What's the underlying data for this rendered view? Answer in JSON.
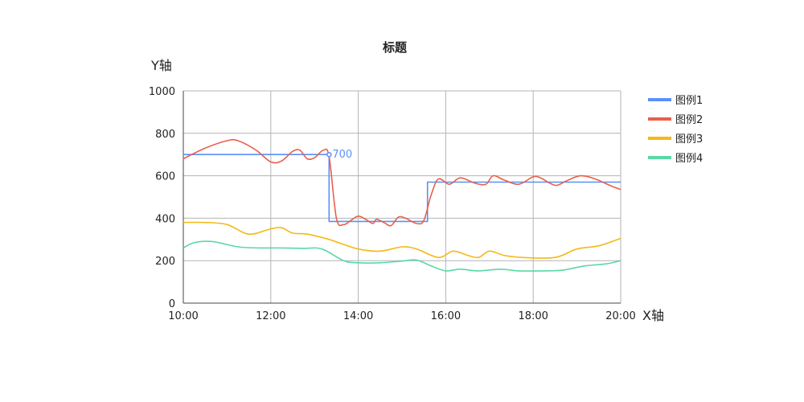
{
  "chart_data": {
    "type": "line",
    "title": "标题",
    "xlabel": "X轴",
    "ylabel": "Y轴",
    "x_ticks": [
      "10:00",
      "12:00",
      "14:00",
      "16:00",
      "18:00",
      "20:00"
    ],
    "x_range": [
      "10:00",
      "20:00"
    ],
    "ylim": [
      0,
      1000
    ],
    "y_ticks": [
      0,
      200,
      400,
      600,
      800,
      1000
    ],
    "grid": true,
    "legend_position": "right",
    "series": [
      {
        "name": "图例1",
        "color": "#5b8ff9",
        "step": true,
        "points": [
          [
            "10:00",
            700
          ],
          [
            "13:20",
            700
          ],
          [
            "13:20",
            385
          ],
          [
            "15:35",
            385
          ],
          [
            "15:35",
            570
          ],
          [
            "20:00",
            570
          ]
        ]
      },
      {
        "name": "图例2",
        "color": "#e8604c",
        "step": false,
        "points": [
          [
            "10:00",
            680
          ],
          [
            "10:30",
            730
          ],
          [
            "11:00",
            765
          ],
          [
            "11:15",
            765
          ],
          [
            "11:40",
            720
          ],
          [
            "12:00",
            665
          ],
          [
            "12:15",
            670
          ],
          [
            "12:30",
            715
          ],
          [
            "12:40",
            720
          ],
          [
            "12:50",
            680
          ],
          [
            "13:00",
            685
          ],
          [
            "13:12",
            720
          ],
          [
            "13:20",
            690
          ],
          [
            "13:30",
            400
          ],
          [
            "13:40",
            370
          ],
          [
            "13:50",
            390
          ],
          [
            "14:00",
            410
          ],
          [
            "14:10",
            395
          ],
          [
            "14:20",
            375
          ],
          [
            "14:25",
            395
          ],
          [
            "14:35",
            380
          ],
          [
            "14:45",
            365
          ],
          [
            "14:55",
            405
          ],
          [
            "15:05",
            400
          ],
          [
            "15:20",
            375
          ],
          [
            "15:30",
            390
          ],
          [
            "15:40",
            510
          ],
          [
            "15:50",
            585
          ],
          [
            "16:05",
            560
          ],
          [
            "16:20",
            590
          ],
          [
            "16:40",
            565
          ],
          [
            "16:55",
            560
          ],
          [
            "17:05",
            600
          ],
          [
            "17:20",
            580
          ],
          [
            "17:40",
            560
          ],
          [
            "18:00",
            595
          ],
          [
            "18:10",
            590
          ],
          [
            "18:30",
            555
          ],
          [
            "18:45",
            575
          ],
          [
            "19:05",
            600
          ],
          [
            "19:25",
            585
          ],
          [
            "19:45",
            555
          ],
          [
            "20:00",
            535
          ]
        ]
      },
      {
        "name": "图例3",
        "color": "#f4b916",
        "step": false,
        "points": [
          [
            "10:00",
            380
          ],
          [
            "10:30",
            380
          ],
          [
            "11:00",
            370
          ],
          [
            "11:30",
            325
          ],
          [
            "12:00",
            350
          ],
          [
            "12:15",
            355
          ],
          [
            "12:30",
            330
          ],
          [
            "12:50",
            325
          ],
          [
            "13:20",
            300
          ],
          [
            "14:00",
            255
          ],
          [
            "14:30",
            245
          ],
          [
            "15:00",
            265
          ],
          [
            "15:20",
            255
          ],
          [
            "15:50",
            215
          ],
          [
            "16:10",
            245
          ],
          [
            "16:30",
            225
          ],
          [
            "16:45",
            215
          ],
          [
            "17:00",
            245
          ],
          [
            "17:20",
            225
          ],
          [
            "17:45",
            215
          ],
          [
            "18:30",
            215
          ],
          [
            "19:00",
            255
          ],
          [
            "19:30",
            270
          ],
          [
            "20:00",
            305
          ]
        ]
      },
      {
        "name": "图例4",
        "color": "#5ad8a6",
        "step": false,
        "points": [
          [
            "10:00",
            260
          ],
          [
            "10:15",
            285
          ],
          [
            "10:40",
            290
          ],
          [
            "11:15",
            265
          ],
          [
            "11:45",
            260
          ],
          [
            "12:15",
            260
          ],
          [
            "12:45",
            258
          ],
          [
            "13:10",
            255
          ],
          [
            "13:40",
            200
          ],
          [
            "14:00",
            190
          ],
          [
            "14:30",
            190
          ],
          [
            "15:00",
            198
          ],
          [
            "15:20",
            203
          ],
          [
            "15:40",
            175
          ],
          [
            "16:00",
            152
          ],
          [
            "16:20",
            160
          ],
          [
            "16:45",
            152
          ],
          [
            "17:15",
            160
          ],
          [
            "17:40",
            152
          ],
          [
            "18:15",
            152
          ],
          [
            "18:40",
            155
          ],
          [
            "19:10",
            175
          ],
          [
            "19:40",
            185
          ],
          [
            "20:00",
            200
          ]
        ]
      }
    ],
    "annotations": [
      {
        "x": "13:20",
        "y": 700,
        "text": "700",
        "series": "图例1"
      }
    ]
  }
}
